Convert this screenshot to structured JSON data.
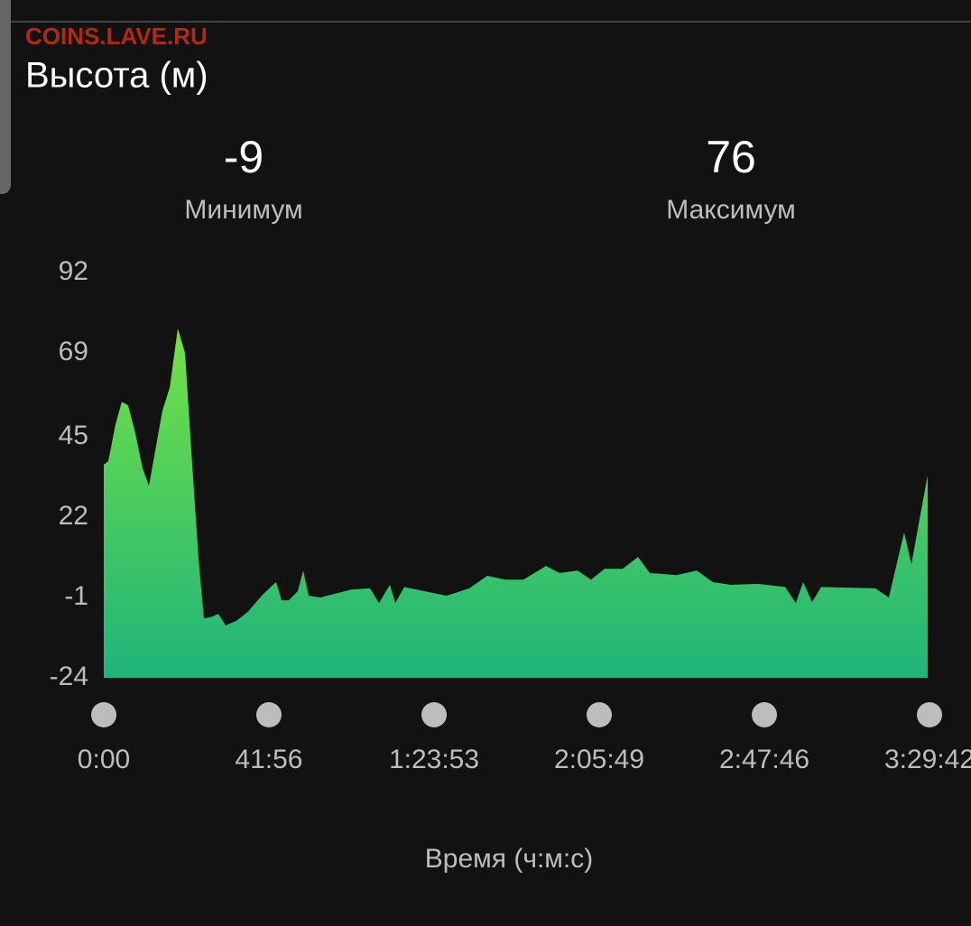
{
  "watermark": "COINS.LAVE.RU",
  "stats": [
    {
      "value": -9,
      "label": "Минимум"
    },
    {
      "value": 76,
      "label": "Максимум"
    }
  ],
  "chart_data": {
    "type": "area",
    "title": "Высота (м)",
    "x_label": "Время (ч:м:с)",
    "x": [
      0,
      69,
      179,
      275,
      371,
      481,
      591,
      688,
      784,
      894,
      1004,
      1128,
      1238,
      1334,
      1444,
      1526,
      1650,
      1746,
      1856,
      2021,
      2200,
      2406,
      2544,
      2626,
      2709,
      2819,
      2956,
      3039,
      3121,
      3300,
      3506,
      3781,
      4056,
      4194,
      4359,
      4441,
      4579,
      4881,
      5225,
      5569,
      5844,
      6119,
      6394,
      6738,
      6944,
      7219,
      7425,
      7631,
      7906,
      8140,
      8319,
      8731,
      9034,
      9281,
      9556,
      9969,
      10381,
      10546,
      10656,
      10794,
      10931,
      11344,
      11756,
      11963,
      12100,
      12196,
      12306,
      12444,
      12554
    ],
    "y": [
      37,
      38,
      48.6,
      55,
      54,
      46,
      36,
      31,
      41,
      52.5,
      59,
      76,
      69,
      41,
      10,
      -7,
      -6.5,
      -5.7,
      -9,
      -7.7,
      -5,
      -0.5,
      2,
      3.4,
      -1.8,
      -1.8,
      0.8,
      6.7,
      -0.5,
      -1,
      0,
      1.3,
      1.6,
      -2.6,
      2.6,
      -2.6,
      2,
      0.8,
      -0.5,
      1.6,
      5.2,
      4.1,
      4.1,
      8,
      6,
      6.7,
      4.1,
      7.2,
      7.2,
      10.6,
      6,
      5.4,
      6.7,
      3.4,
      2.6,
      2.9,
      2,
      -2.6,
      3.4,
      -2.3,
      2,
      1.8,
      1.6,
      -1,
      10,
      17.6,
      8.5,
      22.8,
      33.9
    ],
    "gradient": [
      "#74e246",
      "#1fb47a"
    ],
    "xlim": [
      0,
      12582
    ],
    "xticks": [
      {
        "value": 0,
        "label": "0:00"
      },
      {
        "value": 2516,
        "label": "41:56"
      },
      {
        "value": 5033,
        "label": "1:23:53"
      },
      {
        "value": 7549,
        "label": "2:05:49"
      },
      {
        "value": 10066,
        "label": "2:47:46"
      },
      {
        "value": 12582,
        "label": "3:29:42"
      }
    ],
    "ylim": [
      -24,
      92
    ],
    "yticks": [
      -24,
      -1,
      22,
      45,
      69,
      92
    ]
  }
}
